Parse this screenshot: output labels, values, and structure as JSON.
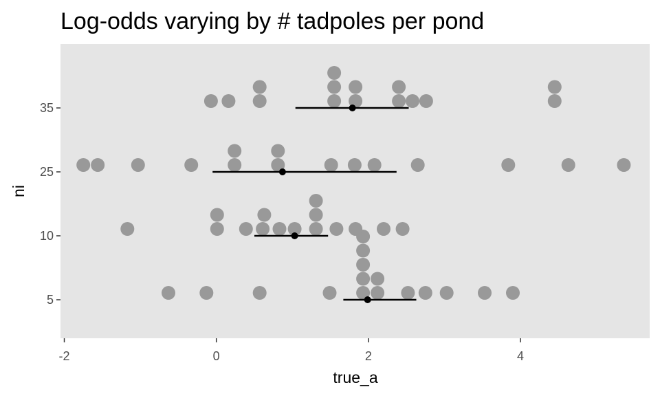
{
  "chart_data": {
    "type": "scatter",
    "title": "Log-odds varying by # tadpoles per pond",
    "xlabel": "true_a",
    "ylabel": "ni",
    "xlim": [
      -2.05,
      5.7
    ],
    "x_ticks": [
      -2,
      0,
      2,
      4
    ],
    "x_tick_labels": [
      "-2",
      "0",
      "2",
      "4"
    ],
    "y_categories": [
      "5",
      "10",
      "25",
      "35"
    ],
    "grid": false,
    "legend": "none",
    "colors": {
      "panel": "#e5e5e5",
      "dot": "#999999",
      "summary": "#000000",
      "tick_label": "#4d4d4d"
    },
    "series": [
      {
        "category": "5",
        "x": [
          -0.63,
          -0.13,
          0.57,
          1.49,
          1.93,
          1.93,
          1.93,
          1.93,
          1.93,
          2.12,
          2.12,
          2.52,
          2.75,
          3.03,
          3.53,
          3.9
        ],
        "mean": 1.99,
        "interval": [
          1.67,
          2.63
        ]
      },
      {
        "category": "10",
        "x": [
          -1.17,
          0.01,
          0.01,
          0.39,
          0.61,
          0.63,
          0.83,
          1.03,
          1.31,
          1.31,
          1.31,
          1.58,
          1.83,
          2.2,
          2.45
        ],
        "mean": 1.03,
        "interval": [
          0.5,
          1.47
        ]
      },
      {
        "category": "25",
        "x": [
          -1.75,
          -1.56,
          -1.03,
          -0.33,
          0.24,
          0.24,
          0.81,
          0.81,
          1.51,
          1.82,
          2.08,
          2.65,
          3.84,
          4.63,
          5.36
        ],
        "mean": 0.87,
        "interval": [
          -0.05,
          2.37
        ]
      },
      {
        "category": "35",
        "x": [
          -0.07,
          0.16,
          0.57,
          0.57,
          1.55,
          1.55,
          1.55,
          1.83,
          1.83,
          2.4,
          2.4,
          2.58,
          2.76,
          4.45,
          4.45
        ],
        "mean": 1.79,
        "interval": [
          1.04,
          2.53
        ]
      }
    ]
  }
}
